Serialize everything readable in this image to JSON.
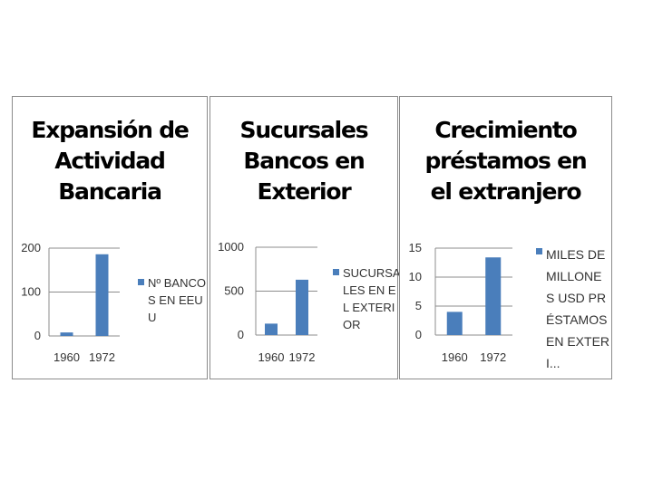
{
  "colors": {
    "bar": "#4a7ebb",
    "gridline": "#8c8c8c",
    "axis": "#8c8c8c"
  },
  "chart_data": [
    {
      "type": "bar",
      "title_lines": [
        "Expansión de",
        "Actividad",
        "Bancaria"
      ],
      "categories": [
        "1960",
        "1972"
      ],
      "series": [
        {
          "name": "Nº BANCOS EN EEUU",
          "values": [
            8,
            186
          ]
        }
      ],
      "yticks": [
        "0",
        "100",
        "200"
      ],
      "ylim": [
        0,
        200
      ],
      "grid": true,
      "legend_position": "right"
    },
    {
      "type": "bar",
      "title_lines": [
        "Sucursales",
        "Bancos en",
        "Exterior"
      ],
      "categories": [
        "1960",
        "1972"
      ],
      "series": [
        {
          "name": "SUCURSALES EN EL EXTERIOR",
          "values": [
            130,
            630
          ]
        }
      ],
      "yticks": [
        "0",
        "500",
        "1000"
      ],
      "ylim": [
        0,
        1000
      ],
      "grid": true,
      "legend_position": "right"
    },
    {
      "type": "bar",
      "title_lines": [
        "Crecimiento",
        "préstamos en",
        "el extranjero"
      ],
      "categories": [
        "1960",
        "1972"
      ],
      "series": [
        {
          "name": "MILES DE MILLONES USD PRÉSTAMOS EN EXTERI...",
          "values": [
            4,
            13.4
          ]
        }
      ],
      "yticks": [
        "0",
        "5",
        "10",
        "15"
      ],
      "ylim": [
        0,
        15
      ],
      "grid": true,
      "legend_position": "right"
    }
  ]
}
